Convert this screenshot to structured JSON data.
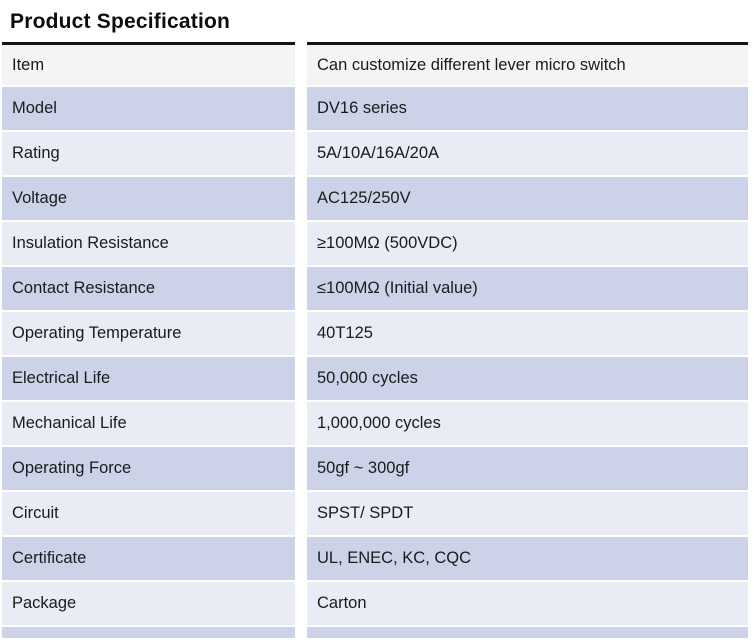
{
  "page": {
    "title": "Product Specification"
  },
  "colors": {
    "header_row": "#f4f4f5",
    "light_row": "#e9ebf5",
    "dark_row": "#ccd3e8",
    "border": "#141414"
  },
  "table": {
    "columns": [
      "label",
      "value"
    ],
    "rows": [
      {
        "label": "Item",
        "value": "Can customize different lever micro switch",
        "tone": "header"
      },
      {
        "label": "Model",
        "value": "DV16 series",
        "tone": "dark"
      },
      {
        "label": "Rating",
        "value": "5A/10A/16A/20A",
        "tone": "light"
      },
      {
        "label": "Voltage",
        "value": "AC125/250V",
        "tone": "dark"
      },
      {
        "label": "Insulation Resistance",
        "value": "≥100MΩ (500VDC)",
        "tone": "light"
      },
      {
        "label": "Contact Resistance",
        "value": "≤100MΩ (Initial value)",
        "tone": "dark"
      },
      {
        "label": "Operating Temperature",
        "value": "40T125",
        "tone": "light"
      },
      {
        "label": "Electrical Life",
        "value": "50,000 cycles",
        "tone": "dark"
      },
      {
        "label": "Mechanical Life",
        "value": "1,000,000 cycles",
        "tone": "light"
      },
      {
        "label": "Operating Force",
        "value": "50gf ~ 300gf",
        "tone": "dark"
      },
      {
        "label": "Circuit",
        "value": "SPST/ SPDT",
        "tone": "light"
      },
      {
        "label": "Certificate",
        "value": "UL, ENEC, KC, CQC",
        "tone": "dark"
      },
      {
        "label": "Package",
        "value": "Carton",
        "tone": "light"
      },
      {
        "label": "",
        "value": "",
        "tone": "dark",
        "partial": true
      }
    ]
  }
}
